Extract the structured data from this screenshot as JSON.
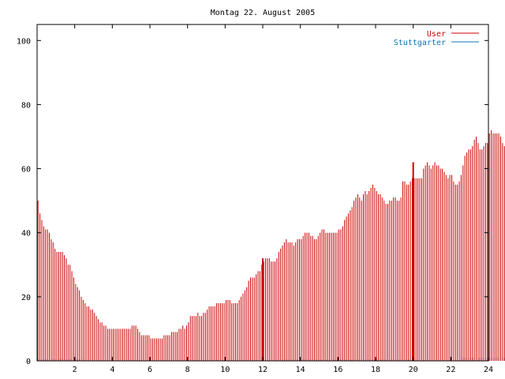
{
  "chart_data": {
    "type": "bar",
    "title": "Montag 22. August 2005",
    "xlabel": "",
    "ylabel": "",
    "xlim": [
      0,
      24
    ],
    "ylim": [
      0,
      105
    ],
    "x_ticks": [
      "2",
      "4",
      "6",
      "8",
      "10",
      "12",
      "14",
      "16",
      "18",
      "20",
      "22",
      "24"
    ],
    "y_ticks": [
      "0",
      "20",
      "40",
      "60",
      "80",
      "100"
    ],
    "grid": false,
    "legend_position": "top-right",
    "bin_width_hours": 0.1,
    "series": [
      {
        "name": "User",
        "color": "#cc0000",
        "values": [
          50,
          46,
          44,
          42,
          41,
          41,
          40,
          38,
          37,
          35,
          34,
          34,
          34,
          34,
          33,
          32,
          30,
          30,
          28,
          26,
          24,
          23,
          22,
          20,
          19,
          18,
          17,
          17,
          16,
          16,
          15,
          14,
          13,
          12,
          12,
          11,
          11,
          10,
          10,
          10,
          10,
          10,
          10,
          10,
          10,
          10,
          10,
          10,
          10,
          10,
          11,
          11,
          11,
          10,
          9,
          8,
          8,
          8,
          8,
          8,
          7,
          7,
          7,
          7,
          7,
          7,
          7,
          8,
          8,
          8,
          8,
          9,
          9,
          9,
          9,
          10,
          10,
          11,
          10,
          11,
          12,
          14,
          14,
          14,
          14,
          15,
          14,
          14,
          15,
          15,
          16,
          17,
          17,
          17,
          17,
          18,
          18,
          18,
          18,
          18,
          19,
          19,
          19,
          18,
          18,
          18,
          18,
          19,
          20,
          21,
          22,
          23,
          25,
          26,
          26,
          26,
          27,
          28,
          28,
          30,
          31,
          32,
          32,
          32,
          31,
          31,
          31,
          32,
          34,
          35,
          36,
          37,
          38,
          37,
          37,
          37,
          36,
          37,
          38,
          38,
          38,
          39,
          40,
          40,
          40,
          39,
          39,
          38,
          38,
          39,
          40,
          41,
          41,
          40,
          40,
          40,
          40,
          40,
          40,
          40,
          41,
          41,
          42,
          44,
          45,
          46,
          47,
          48,
          50,
          51,
          52,
          51,
          50,
          52,
          53,
          52,
          53,
          54,
          55,
          54,
          53,
          52,
          52,
          51,
          50,
          49,
          49,
          50,
          50,
          51,
          51,
          50,
          50,
          51,
          56,
          56,
          55,
          55,
          56,
          57,
          57,
          57,
          57,
          57,
          57,
          60,
          61,
          62,
          61,
          60,
          61,
          62,
          61,
          61,
          60,
          60,
          59,
          58,
          57,
          58,
          58,
          56,
          55,
          55,
          56,
          58,
          61,
          64,
          65,
          66,
          66,
          67,
          69,
          70,
          68,
          66,
          66,
          67,
          68,
          68,
          71,
          72,
          71,
          71,
          71,
          71,
          70,
          68,
          67,
          69,
          71,
          72,
          72,
          71,
          70,
          69,
          68,
          66,
          65
        ]
      },
      {
        "name": "Stuttgarter",
        "color": "#0a74b8",
        "values": [
          0.6,
          0.6,
          0.6,
          0.6,
          0.6,
          0.6,
          0.6,
          0.6,
          0.6,
          0.6,
          0.6,
          0.6,
          0.6,
          0.6,
          0.6,
          0.6,
          0.6,
          0.6,
          0.6,
          0.6,
          0.6,
          0.6,
          0.6,
          0.6,
          0.6,
          0,
          0,
          0,
          0,
          0,
          0,
          0,
          0,
          0,
          0,
          0,
          0,
          0,
          0,
          0,
          0,
          0,
          0,
          0,
          0,
          0,
          0,
          0,
          0,
          0,
          0,
          0,
          0,
          0,
          0,
          0,
          0,
          0,
          0,
          0,
          0,
          0,
          0,
          0,
          0,
          0,
          0,
          0,
          0,
          0,
          0,
          0,
          0,
          0,
          0,
          0,
          0,
          0,
          0,
          0,
          0,
          0,
          0,
          0,
          0,
          0,
          0,
          0,
          0,
          0,
          0,
          0,
          0,
          0,
          0,
          0,
          0,
          0,
          0,
          0,
          0,
          0,
          0,
          0,
          0,
          0,
          0,
          0,
          0,
          0,
          0,
          0,
          0,
          0,
          0,
          0,
          0,
          0,
          0,
          0,
          0,
          0,
          0,
          0,
          0,
          0,
          0,
          0,
          0,
          0,
          0.4,
          0.4,
          0.4,
          0.4,
          0.4,
          0.4,
          0.4,
          0.4,
          0.4,
          0.4,
          0.4,
          0.4,
          0.4,
          0.4,
          0.4,
          0.4,
          0.4,
          0.4,
          0.4,
          0.4,
          0.4,
          0.4,
          0.4,
          0.4,
          0.4,
          0.4,
          0.4,
          0.4,
          0.4,
          0.4,
          0.4,
          0.4,
          0.4,
          0.4,
          0.4,
          0.4,
          0.4,
          0.4,
          0.4,
          0.4,
          0.4,
          0.4,
          0.4,
          0.4,
          0.4,
          0.4,
          0.4,
          0.4,
          0.4,
          0.4,
          0.4,
          0.4,
          0.4,
          0.4,
          0.4,
          0.4,
          0.4,
          0.4,
          0.4,
          0.4,
          0.4,
          0.4,
          0.4,
          0.4,
          0.4,
          0.4,
          0.4,
          0.4,
          0.4,
          0.4,
          0.4,
          0,
          0,
          0,
          0,
          0,
          0,
          0,
          0,
          0,
          0,
          0,
          0,
          0,
          0,
          0,
          0,
          0,
          0,
          0,
          0,
          0,
          0,
          0,
          0,
          1,
          1,
          1,
          1,
          1,
          1,
          1,
          1,
          1,
          1,
          1,
          1,
          1,
          1,
          1,
          1,
          1,
          1,
          1,
          1,
          1,
          1,
          1,
          1
        ]
      }
    ],
    "annotations": [
      "tall marker bar at 12:00",
      "tall marker bar at 20:00"
    ]
  }
}
